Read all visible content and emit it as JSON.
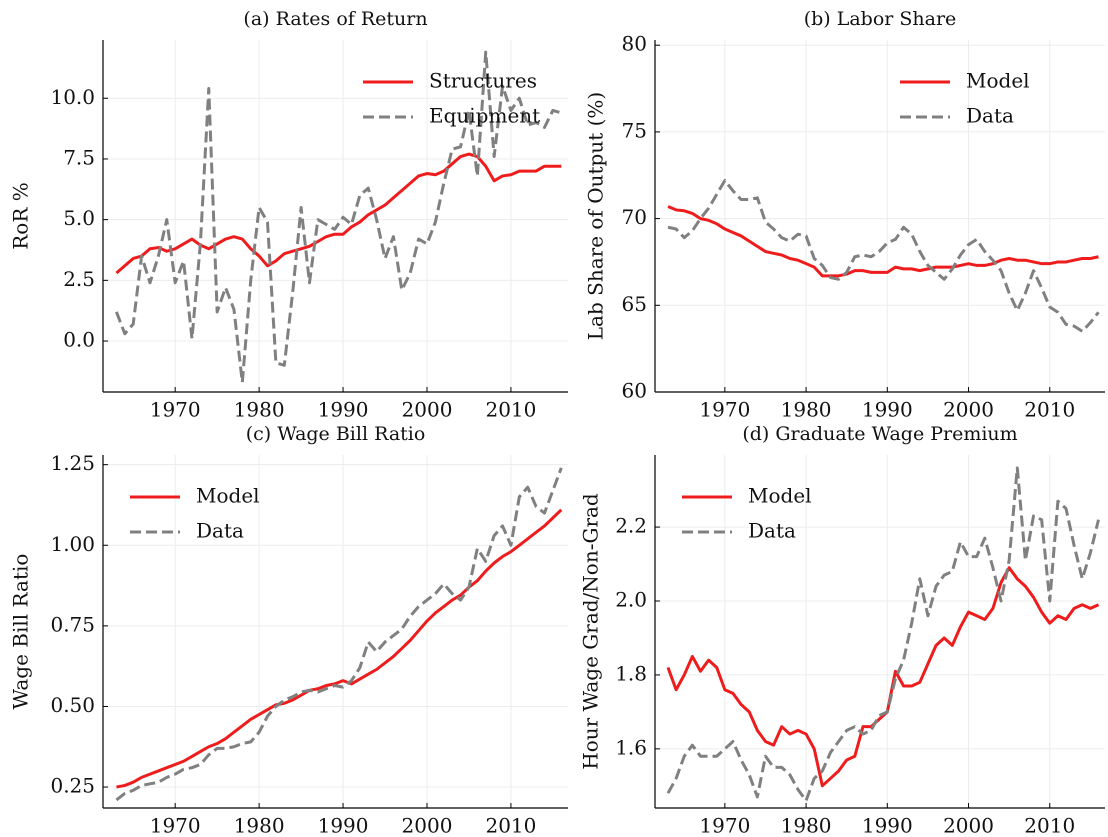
{
  "chart_data": [
    {
      "type": "line",
      "title": "(a) Rates of Return",
      "ylabel": "RoR %",
      "x": [
        1963,
        1964,
        1965,
        1966,
        1967,
        1968,
        1969,
        1970,
        1971,
        1972,
        1973,
        1974,
        1975,
        1976,
        1977,
        1978,
        1979,
        1980,
        1981,
        1982,
        1983,
        1984,
        1985,
        1986,
        1987,
        1988,
        1989,
        1990,
        1991,
        1992,
        1993,
        1994,
        1995,
        1996,
        1997,
        1998,
        1999,
        2000,
        2001,
        2002,
        2003,
        2004,
        2005,
        2006,
        2007,
        2008,
        2009,
        2010,
        2011,
        2012,
        2013,
        2014,
        2015,
        2016
      ],
      "series": [
        {
          "name": "Structures",
          "color": "#ee1c1c",
          "linestyle": "solid",
          "values": [
            2.8,
            3.1,
            3.4,
            3.5,
            3.8,
            3.85,
            3.7,
            3.8,
            4.0,
            4.2,
            3.95,
            3.8,
            4.0,
            4.2,
            4.3,
            4.2,
            3.8,
            3.5,
            3.1,
            3.3,
            3.6,
            3.7,
            3.8,
            3.9,
            4.1,
            4.3,
            4.4,
            4.4,
            4.7,
            4.9,
            5.2,
            5.4,
            5.6,
            5.9,
            6.2,
            6.5,
            6.8,
            6.9,
            6.85,
            7.0,
            7.3,
            7.6,
            7.7,
            7.6,
            7.2,
            6.6,
            6.8,
            6.85,
            7.0,
            7.0,
            7.0,
            7.2,
            7.2,
            7.2
          ]
        },
        {
          "name": "Equipment",
          "color": "#808080",
          "linestyle": "dashed",
          "values": [
            1.2,
            0.3,
            0.7,
            3.5,
            2.4,
            3.5,
            5.0,
            2.4,
            3.3,
            0.1,
            4.0,
            10.4,
            1.2,
            2.2,
            1.3,
            -1.7,
            2.5,
            5.5,
            4.9,
            -0.9,
            -1.0,
            2.0,
            5.5,
            2.4,
            5.0,
            4.8,
            4.6,
            5.1,
            4.8,
            6.0,
            6.3,
            5.0,
            3.4,
            4.3,
            2.1,
            2.8,
            4.2,
            4.0,
            4.9,
            6.5,
            7.9,
            8.0,
            9.5,
            6.8,
            11.9,
            7.6,
            10.5,
            9.5,
            10.0,
            8.9,
            9.0,
            8.8,
            9.5,
            9.4
          ]
        }
      ],
      "xlim": [
        1961.4,
        2016.8
      ],
      "xticks": [
        1970,
        1980,
        1990,
        2000,
        2010
      ],
      "ylim": [
        -2.1,
        12.4
      ],
      "yticks": [
        {
          "value": 0,
          "label": "0.0"
        },
        2.5,
        {
          "value": 5,
          "label": "5.0"
        },
        7.5,
        {
          "value": 10,
          "label": "10.0"
        }
      ],
      "grid": true,
      "legend": "upper right"
    },
    {
      "type": "line",
      "title": "(b) Labor Share",
      "ylabel": "Lab Share of Output (%)",
      "x": [
        1963,
        1964,
        1965,
        1966,
        1967,
        1968,
        1969,
        1970,
        1971,
        1972,
        1973,
        1974,
        1975,
        1976,
        1977,
        1978,
        1979,
        1980,
        1981,
        1982,
        1983,
        1984,
        1985,
        1986,
        1987,
        1988,
        1989,
        1990,
        1991,
        1992,
        1993,
        1994,
        1995,
        1996,
        1997,
        1998,
        1999,
        2000,
        2001,
        2002,
        2003,
        2004,
        2005,
        2006,
        2007,
        2008,
        2009,
        2010,
        2011,
        2012,
        2013,
        2014,
        2015,
        2016
      ],
      "series": [
        {
          "name": "Model",
          "color": "#ee1c1c",
          "linestyle": "solid",
          "values": [
            70.7,
            70.5,
            70.45,
            70.3,
            70.0,
            69.9,
            69.7,
            69.4,
            69.2,
            69.0,
            68.7,
            68.4,
            68.1,
            68.0,
            67.9,
            67.7,
            67.6,
            67.4,
            67.2,
            66.7,
            66.7,
            66.7,
            66.8,
            67.0,
            67.0,
            66.9,
            66.9,
            66.9,
            67.2,
            67.1,
            67.1,
            67.0,
            67.1,
            67.2,
            67.2,
            67.2,
            67.3,
            67.4,
            67.3,
            67.3,
            67.4,
            67.6,
            67.7,
            67.6,
            67.6,
            67.5,
            67.4,
            67.4,
            67.5,
            67.5,
            67.6,
            67.7,
            67.7,
            67.8
          ]
        },
        {
          "name": "Data",
          "color": "#808080",
          "linestyle": "dashed",
          "values": [
            69.5,
            69.4,
            68.9,
            69.3,
            70.0,
            70.6,
            71.4,
            72.2,
            71.6,
            71.1,
            71.1,
            71.2,
            69.8,
            69.4,
            68.9,
            68.7,
            69.1,
            69.0,
            67.7,
            67.3,
            66.6,
            66.5,
            66.9,
            67.8,
            67.9,
            67.8,
            68.1,
            68.6,
            68.8,
            69.5,
            69.1,
            68.1,
            67.3,
            66.9,
            66.5,
            67.1,
            67.9,
            68.5,
            68.8,
            68.1,
            67.6,
            67.0,
            65.7,
            64.7,
            65.7,
            67.0,
            66.0,
            64.9,
            64.6,
            63.9,
            63.8,
            63.5,
            64.0,
            64.6
          ]
        }
      ],
      "xlim": [
        1961.4,
        2016.8
      ],
      "xticks": [
        1970,
        1980,
        1990,
        2000,
        2010
      ],
      "ylim": [
        60,
        80.3
      ],
      "yticks": [
        60,
        65,
        70,
        75,
        80
      ],
      "grid": true,
      "legend": "upper right"
    },
    {
      "type": "line",
      "title": "(c) Wage Bill Ratio",
      "ylabel": "Wage Bill Ratio",
      "x": [
        1963,
        1964,
        1965,
        1966,
        1967,
        1968,
        1969,
        1970,
        1971,
        1972,
        1973,
        1974,
        1975,
        1976,
        1977,
        1978,
        1979,
        1980,
        1981,
        1982,
        1983,
        1984,
        1985,
        1986,
        1987,
        1988,
        1989,
        1990,
        1991,
        1992,
        1993,
        1994,
        1995,
        1996,
        1997,
        1998,
        1999,
        2000,
        2001,
        2002,
        2003,
        2004,
        2005,
        2006,
        2007,
        2008,
        2009,
        2010,
        2011,
        2012,
        2013,
        2014,
        2015,
        2016
      ],
      "series": [
        {
          "name": "Model",
          "color": "#ee1c1c",
          "linestyle": "solid",
          "values": [
            0.25,
            0.255,
            0.265,
            0.28,
            0.29,
            0.3,
            0.31,
            0.32,
            0.33,
            0.345,
            0.36,
            0.375,
            0.385,
            0.4,
            0.42,
            0.44,
            0.46,
            0.475,
            0.49,
            0.505,
            0.51,
            0.52,
            0.535,
            0.55,
            0.555,
            0.565,
            0.57,
            0.58,
            0.57,
            0.585,
            0.6,
            0.615,
            0.635,
            0.655,
            0.68,
            0.705,
            0.735,
            0.765,
            0.79,
            0.81,
            0.83,
            0.845,
            0.87,
            0.89,
            0.92,
            0.945,
            0.965,
            0.98,
            1.0,
            1.02,
            1.04,
            1.06,
            1.085,
            1.11
          ]
        },
        {
          "name": "Data",
          "color": "#808080",
          "linestyle": "dashed",
          "values": [
            0.21,
            0.23,
            0.24,
            0.255,
            0.26,
            0.265,
            0.28,
            0.29,
            0.305,
            0.31,
            0.32,
            0.35,
            0.37,
            0.37,
            0.375,
            0.385,
            0.39,
            0.42,
            0.47,
            0.5,
            0.52,
            0.53,
            0.545,
            0.55,
            0.545,
            0.555,
            0.565,
            0.56,
            0.58,
            0.62,
            0.7,
            0.67,
            0.7,
            0.72,
            0.74,
            0.78,
            0.81,
            0.83,
            0.85,
            0.88,
            0.85,
            0.83,
            0.87,
            0.99,
            0.95,
            1.03,
            1.06,
            1.0,
            1.15,
            1.18,
            1.12,
            1.1,
            1.17,
            1.24
          ]
        }
      ],
      "xlim": [
        1961.4,
        2016.8
      ],
      "xticks": [
        1970,
        1980,
        1990,
        2000,
        2010
      ],
      "ylim": [
        0.185,
        1.28
      ],
      "yticks": [
        0.25,
        {
          "value": 0.5,
          "label": "0.50"
        },
        0.75,
        {
          "value": 1,
          "label": "1.00"
        },
        1.25
      ],
      "grid": true,
      "legend": "upper left"
    },
    {
      "type": "line",
      "title": "(d) Graduate Wage Premium",
      "ylabel": "Hour Wage Grad/Non-Grad",
      "x": [
        1963,
        1964,
        1965,
        1966,
        1967,
        1968,
        1969,
        1970,
        1971,
        1972,
        1973,
        1974,
        1975,
        1976,
        1977,
        1978,
        1979,
        1980,
        1981,
        1982,
        1983,
        1984,
        1985,
        1986,
        1987,
        1988,
        1989,
        1990,
        1991,
        1992,
        1993,
        1994,
        1995,
        1996,
        1997,
        1998,
        1999,
        2000,
        2001,
        2002,
        2003,
        2004,
        2005,
        2006,
        2007,
        2008,
        2009,
        2010,
        2011,
        2012,
        2013,
        2014,
        2015,
        2016
      ],
      "series": [
        {
          "name": "Model",
          "color": "#ee1c1c",
          "linestyle": "solid",
          "values": [
            1.82,
            1.76,
            1.8,
            1.85,
            1.81,
            1.84,
            1.82,
            1.76,
            1.75,
            1.72,
            1.7,
            1.65,
            1.62,
            1.61,
            1.66,
            1.64,
            1.65,
            1.64,
            1.6,
            1.5,
            1.52,
            1.54,
            1.57,
            1.58,
            1.66,
            1.66,
            1.68,
            1.7,
            1.81,
            1.77,
            1.77,
            1.78,
            1.83,
            1.88,
            1.9,
            1.88,
            1.93,
            1.97,
            1.96,
            1.95,
            1.98,
            2.05,
            2.09,
            2.06,
            2.04,
            2.01,
            1.97,
            1.94,
            1.96,
            1.95,
            1.98,
            1.99,
            1.98,
            1.99
          ]
        },
        {
          "name": "Data",
          "color": "#808080",
          "linestyle": "dashed",
          "values": [
            1.48,
            1.52,
            1.58,
            1.61,
            1.58,
            1.58,
            1.58,
            1.6,
            1.62,
            1.57,
            1.53,
            1.47,
            1.58,
            1.55,
            1.55,
            1.53,
            1.49,
            1.46,
            1.52,
            1.54,
            1.59,
            1.62,
            1.65,
            1.66,
            1.64,
            1.65,
            1.69,
            1.7,
            1.79,
            1.84,
            1.94,
            2.06,
            1.96,
            2.04,
            2.07,
            2.08,
            2.16,
            2.12,
            2.12,
            2.17,
            2.09,
            2.0,
            2.11,
            2.36,
            2.11,
            2.23,
            2.22,
            2.0,
            2.27,
            2.25,
            2.15,
            2.06,
            2.13,
            2.22
          ]
        }
      ],
      "xlim": [
        1961.4,
        2016.8
      ],
      "xticks": [
        1970,
        1980,
        1990,
        2000,
        2010
      ],
      "ylim": [
        1.44,
        2.395
      ],
      "yticks": [
        1.6,
        1.8,
        {
          "value": 2,
          "label": "2.0"
        },
        2.2
      ],
      "grid": true,
      "legend": "upper left"
    }
  ]
}
